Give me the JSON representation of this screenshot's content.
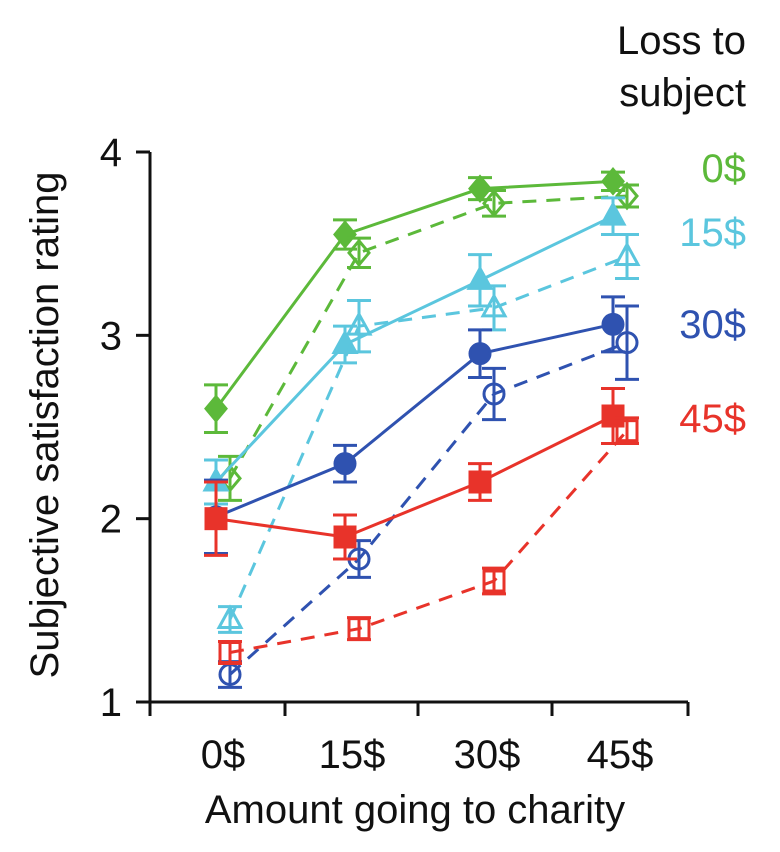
{
  "chart_data": {
    "type": "line",
    "xlabel": "Amount going to charity",
    "ylabel": "Subjective satisfaction rating",
    "categories": [
      "0$",
      "15$",
      "30$",
      "45$"
    ],
    "ylim": [
      1,
      4
    ],
    "yticks": [
      1,
      2,
      3,
      4
    ],
    "grid": false,
    "legend": {
      "title": [
        "Loss to",
        "subject"
      ],
      "placement": "top-right",
      "entries": [
        "0$",
        "15$",
        "30$",
        "45$"
      ]
    },
    "series": [
      {
        "name": "0$",
        "color": "#5cb93a",
        "marker": "diamond",
        "style": "solid",
        "values": [
          2.6,
          3.55,
          3.8,
          3.84
        ],
        "errors": [
          0.13,
          0.08,
          0.06,
          0.05
        ]
      },
      {
        "name": "0$",
        "color": "#5cb93a",
        "marker": "diamond",
        "style": "dashed",
        "values": [
          2.22,
          3.45,
          3.72,
          3.76
        ],
        "errors": [
          0.12,
          0.08,
          0.07,
          0.06
        ]
      },
      {
        "name": "15$",
        "color": "#5bc6de",
        "marker": "triangle",
        "style": "solid",
        "values": [
          2.2,
          2.95,
          3.3,
          3.65
        ],
        "errors": [
          0.12,
          0.1,
          0.14,
          0.1
        ]
      },
      {
        "name": "15$",
        "color": "#5bc6de",
        "marker": "triangle",
        "style": "dashed",
        "values": [
          1.45,
          3.05,
          3.15,
          3.43
        ],
        "errors": [
          0.07,
          0.14,
          0.12,
          0.12
        ]
      },
      {
        "name": "30$",
        "color": "#2f52b0",
        "marker": "circle",
        "style": "solid",
        "values": [
          2.01,
          2.3,
          2.9,
          3.06
        ],
        "errors": [
          0.2,
          0.1,
          0.13,
          0.15
        ]
      },
      {
        "name": "30$",
        "color": "#2f52b0",
        "marker": "circle",
        "style": "dashed",
        "values": [
          1.15,
          1.78,
          2.68,
          2.96
        ],
        "errors": [
          0.07,
          0.1,
          0.14,
          0.2
        ]
      },
      {
        "name": "45$",
        "color": "#e8332a",
        "marker": "square",
        "style": "solid",
        "values": [
          2.0,
          1.9,
          2.2,
          2.56
        ],
        "errors": [
          0.2,
          0.12,
          0.1,
          0.15
        ]
      },
      {
        "name": "45$",
        "color": "#e8332a",
        "marker": "square",
        "style": "dashed",
        "values": [
          1.27,
          1.4,
          1.66,
          2.48
        ],
        "errors": [
          0.06,
          0.06,
          0.07,
          0.07
        ]
      }
    ]
  }
}
